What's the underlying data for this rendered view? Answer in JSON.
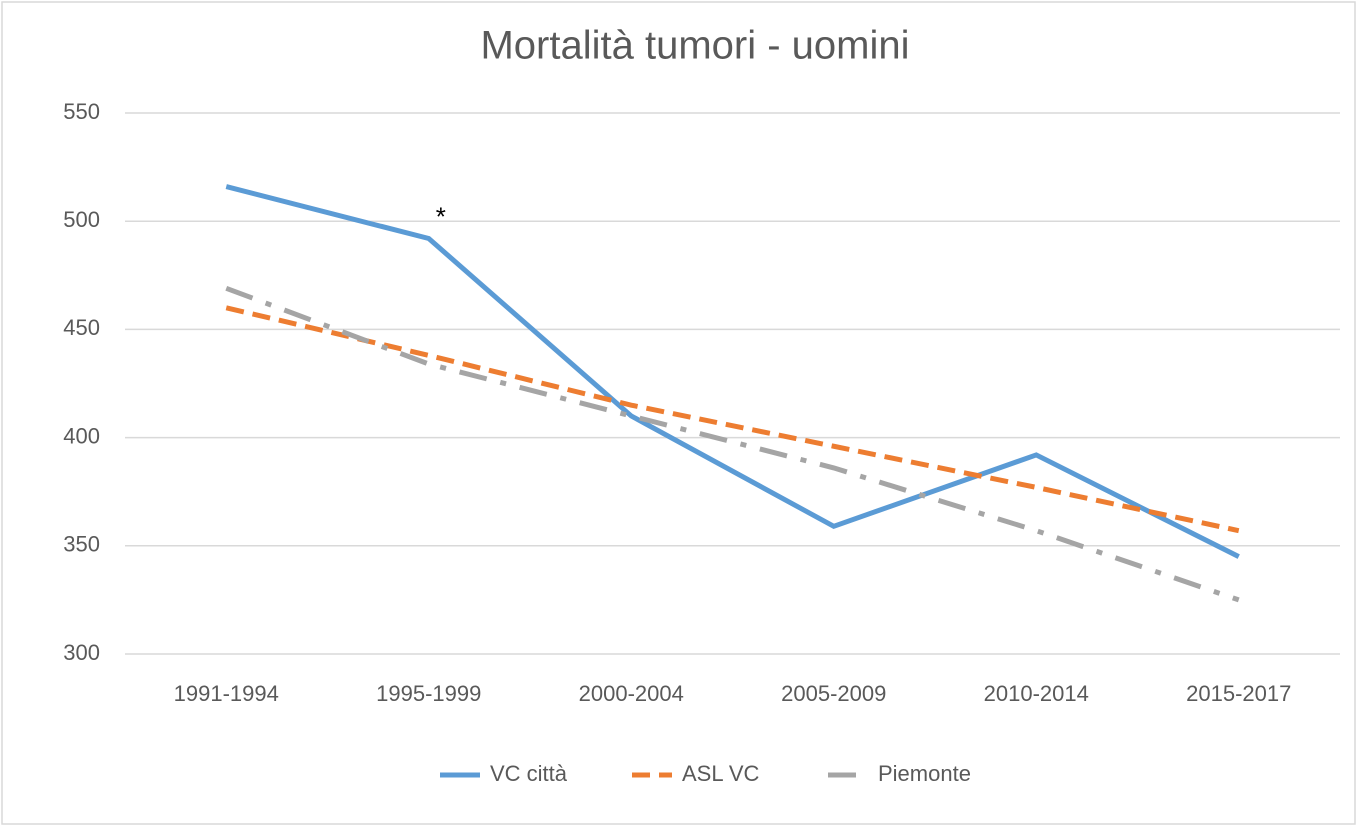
{
  "chart_data": {
    "type": "line",
    "title": "Mortalità tumori - uomini",
    "categories": [
      "1991-1994",
      "1995-1999",
      "2000-2004",
      "2005-2009",
      "2010-2014",
      "2015-2017"
    ],
    "series": [
      {
        "name": "VC città",
        "color": "#5b9bd5",
        "style": "solid",
        "values": [
          516,
          492,
          410,
          359,
          392,
          345
        ]
      },
      {
        "name": "ASL VC",
        "color": "#ed7d31",
        "style": "dashed",
        "values": [
          460,
          438,
          415,
          396,
          377,
          357
        ]
      },
      {
        "name": "Piemonte",
        "color": "#a5a5a5",
        "style": "dashdot",
        "values": [
          469,
          434,
          410,
          386,
          357,
          325
        ]
      }
    ],
    "annotation": "*",
    "ylim": [
      300,
      550
    ],
    "yticks": [
      300,
      350,
      400,
      450,
      500,
      550
    ],
    "grid": true,
    "legend": "bottom"
  }
}
